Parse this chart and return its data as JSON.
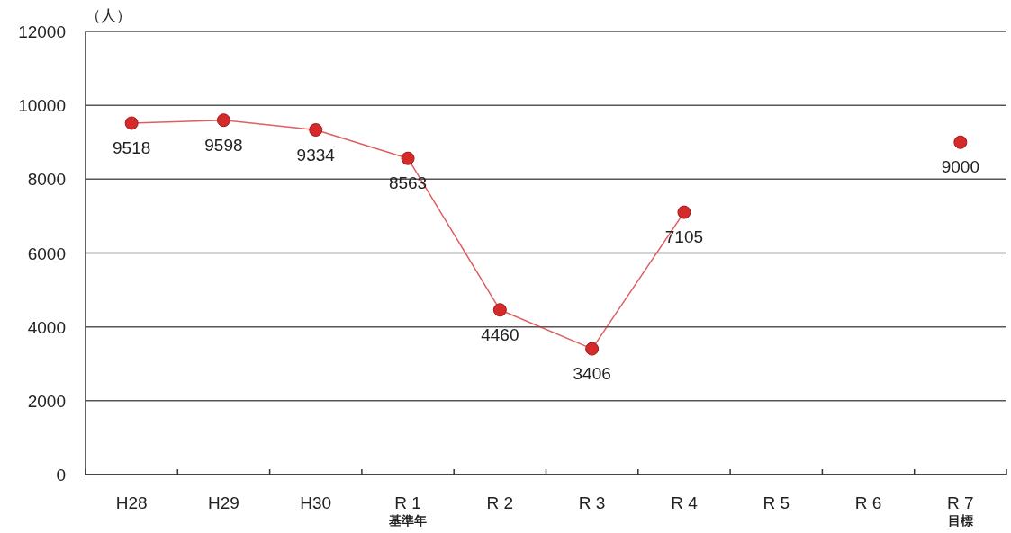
{
  "chart_data": {
    "type": "line",
    "ylabel": "（人）",
    "categories": [
      "H28",
      "H29",
      "H30",
      "R 1\n基準年",
      "R 2",
      "R 3",
      "R 4",
      "R 5",
      "R 6",
      "R 7\n目標"
    ],
    "series": [
      {
        "type": "line",
        "color": "#d42a2a",
        "values": [
          9518,
          9598,
          9334,
          8563,
          4460,
          3406,
          7105,
          null,
          null,
          null
        ]
      },
      {
        "type": "scatter",
        "color": "#d42a2a",
        "values": [
          null,
          null,
          null,
          null,
          null,
          null,
          null,
          null,
          null,
          9000
        ]
      }
    ],
    "ylim": [
      0,
      12000
    ],
    "yticks": [
      0,
      2000,
      4000,
      6000,
      8000,
      10000,
      12000
    ],
    "grid": "y",
    "marker": "circle",
    "data_labels": true
  }
}
